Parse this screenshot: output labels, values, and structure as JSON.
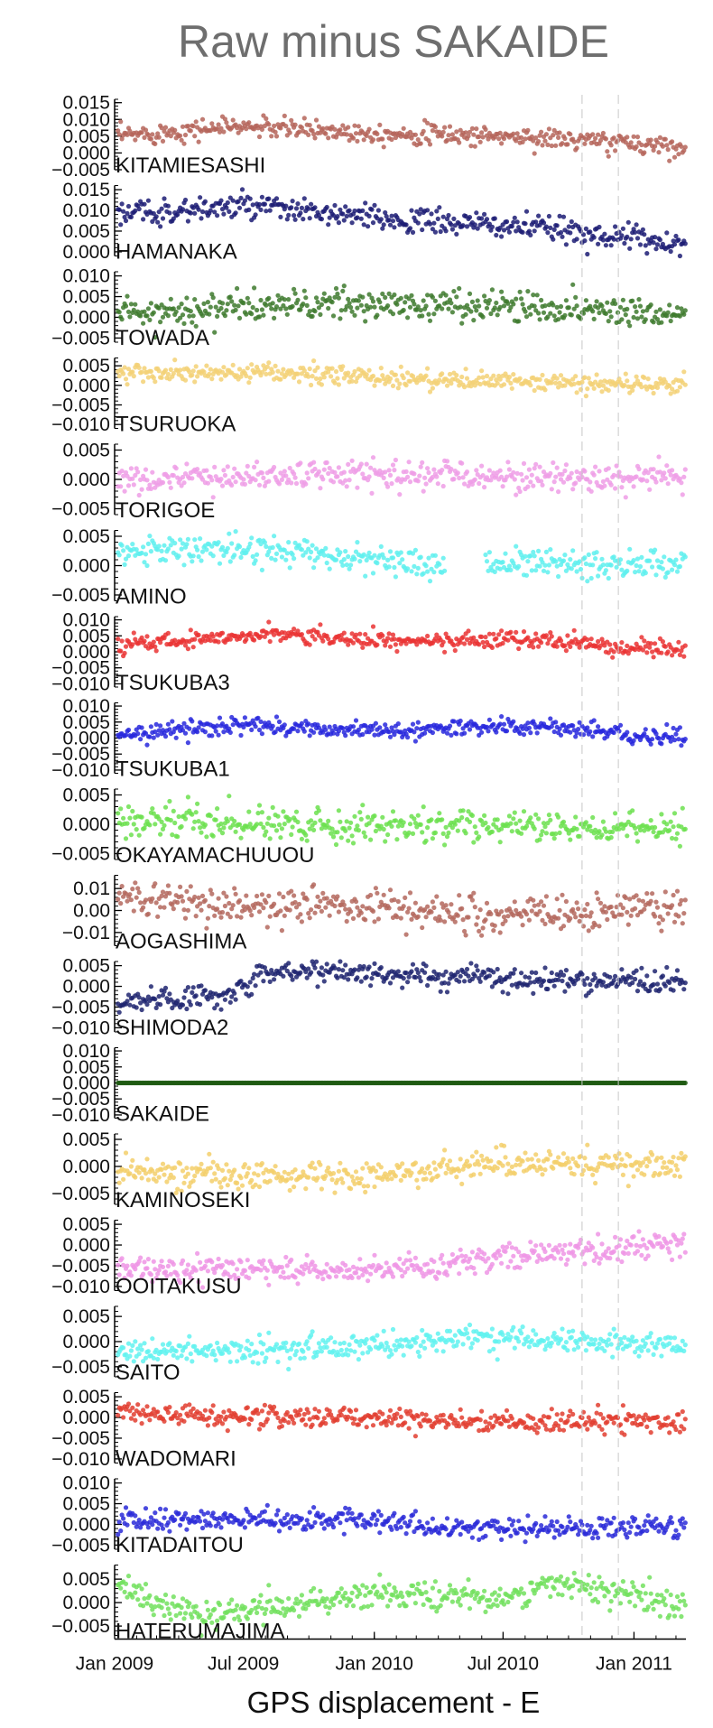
{
  "chart_data": {
    "type": "scatter",
    "title": "Raw minus SAKAIDE",
    "xlabel": "GPS displacement - E",
    "x_ticks": [
      "Jan 2009",
      "Jul 2009",
      "Jan 2010",
      "Jul 2010",
      "Jan 2011"
    ],
    "xlim": [
      "2009-01-01",
      "2011-03-15"
    ],
    "reference_lines": [
      "2010-10-20",
      "2010-12-10"
    ],
    "grid": false,
    "legend": "none",
    "panels": [
      {
        "station": "KITAMIESASHI",
        "color": "#b5655a",
        "ylim": [
          -0.005,
          0.016
        ],
        "y_ticks": [
          "0.015",
          "0.010",
          "0.005",
          "0.000",
          "−0.005"
        ],
        "y_tick_values": [
          0.015,
          0.01,
          0.005,
          0.0,
          -0.005
        ],
        "trend": [
          [
            "2009-01-01",
            0.005
          ],
          [
            "2009-06-15",
            0.008
          ],
          [
            "2010-01-01",
            0.006
          ],
          [
            "2010-07-01",
            0.005
          ],
          [
            "2011-03-15",
            0.002
          ]
        ],
        "spread": 0.0015
      },
      {
        "station": "HAMANAKA",
        "color": "#1c1c74",
        "ylim": [
          -0.001,
          0.016
        ],
        "y_ticks": [
          "0.015",
          "0.010",
          "0.005",
          "0.000"
        ],
        "y_tick_values": [
          0.015,
          0.01,
          0.005,
          0.0
        ],
        "trend": [
          [
            "2009-01-01",
            0.009
          ],
          [
            "2009-07-01",
            0.011
          ],
          [
            "2010-01-01",
            0.008
          ],
          [
            "2010-08-01",
            0.006
          ],
          [
            "2011-03-15",
            0.002
          ]
        ],
        "spread": 0.0015
      },
      {
        "station": "TOWADA",
        "color": "#3e7a2e",
        "ylim": [
          -0.006,
          0.011
        ],
        "y_ticks": [
          "0.010",
          "0.005",
          "0.000",
          "−0.005"
        ],
        "y_tick_values": [
          0.01,
          0.005,
          0.0,
          -0.005
        ],
        "trend": [
          [
            "2009-01-01",
            0.001
          ],
          [
            "2009-09-01",
            0.003
          ],
          [
            "2010-06-01",
            0.003
          ],
          [
            "2011-03-15",
            0.001
          ]
        ],
        "spread": 0.0018
      },
      {
        "station": "TSURUOKA",
        "color": "#f3d175",
        "ylim": [
          -0.011,
          0.007
        ],
        "y_ticks": [
          "0.005",
          "0.000",
          "−0.005",
          "−0.010"
        ],
        "y_tick_values": [
          0.005,
          0.0,
          -0.005,
          -0.01
        ],
        "trend": [
          [
            "2009-01-01",
            0.003
          ],
          [
            "2009-09-01",
            0.003
          ],
          [
            "2010-06-01",
            0.001
          ],
          [
            "2011-03-15",
            0.0
          ]
        ],
        "spread": 0.0012
      },
      {
        "station": "TORIGOE",
        "color": "#ee9de6",
        "ylim": [
          -0.006,
          0.006
        ],
        "y_ticks": [
          "0.005",
          "0.000",
          "−0.005"
        ],
        "y_tick_values": [
          0.005,
          0.0,
          -0.005
        ],
        "trend": [
          [
            "2009-01-01",
            0.0
          ],
          [
            "2010-01-01",
            0.001
          ],
          [
            "2011-03-15",
            0.0
          ]
        ],
        "spread": 0.0012
      },
      {
        "station": "AMINO",
        "color": "#5ff0ee",
        "ylim": [
          -0.006,
          0.006
        ],
        "y_ticks": [
          "0.005",
          "0.000",
          "−0.005"
        ],
        "y_tick_values": [
          0.005,
          0.0,
          -0.005
        ],
        "trend": [
          [
            "2009-01-01",
            0.0025
          ],
          [
            "2009-07-01",
            0.003
          ],
          [
            "2010-04-01",
            0.0
          ],
          [
            "2010-08-01",
            0.0005
          ],
          [
            "2011-03-15",
            0.0
          ]
        ],
        "spread": 0.0012,
        "gap": [
          "2010-04-10",
          "2010-06-05"
        ]
      },
      {
        "station": "TSUKUBA3",
        "color": "#ea3434",
        "ylim": [
          -0.011,
          0.011
        ],
        "y_ticks": [
          "0.010",
          "0.005",
          "0.000",
          "−0.005",
          "−0.010"
        ],
        "y_tick_values": [
          0.01,
          0.005,
          0.0,
          -0.005,
          -0.01
        ],
        "trend": [
          [
            "2009-01-01",
            0.002
          ],
          [
            "2009-08-01",
            0.006
          ],
          [
            "2010-02-01",
            0.003
          ],
          [
            "2010-08-01",
            0.004
          ],
          [
            "2011-03-15",
            0.0
          ]
        ],
        "spread": 0.0013
      },
      {
        "station": "TSUKUBA1",
        "color": "#2828dd",
        "ylim": [
          -0.011,
          0.011
        ],
        "y_ticks": [
          "0.010",
          "0.005",
          "0.000",
          "−0.005",
          "−0.010"
        ],
        "y_tick_values": [
          0.01,
          0.005,
          0.0,
          -0.005,
          -0.01
        ],
        "trend": [
          [
            "2009-01-01",
            0.001
          ],
          [
            "2009-07-01",
            0.004
          ],
          [
            "2010-01-01",
            0.002
          ],
          [
            "2010-07-01",
            0.004
          ],
          [
            "2011-03-15",
            0.0
          ]
        ],
        "spread": 0.0013
      },
      {
        "station": "OKAYAMACHUUOU",
        "color": "#6ce04f",
        "ylim": [
          -0.006,
          0.006
        ],
        "y_ticks": [
          "0.005",
          "0.000",
          "−0.005"
        ],
        "y_tick_values": [
          0.005,
          0.0,
          -0.005
        ],
        "trend": [
          [
            "2009-01-01",
            0.0005
          ],
          [
            "2011-03-15",
            -0.001
          ]
        ],
        "spread": 0.0013
      },
      {
        "station": "AOGASHIMA",
        "color": "#b4695e",
        "ylim": [
          -0.016,
          0.016
        ],
        "y_ticks": [
          "0.01",
          "0.00",
          "−0.01"
        ],
        "y_tick_values": [
          0.01,
          0.0,
          -0.01
        ],
        "trend": [
          [
            "2009-01-01",
            0.007
          ],
          [
            "2009-07-01",
            0.002
          ],
          [
            "2010-01-01",
            0.002
          ],
          [
            "2010-07-01",
            -0.003
          ],
          [
            "2011-03-15",
            0.002
          ]
        ],
        "spread": 0.004
      },
      {
        "station": "SHIMODA2",
        "color": "#1f2470",
        "ylim": [
          -0.011,
          0.006
        ],
        "y_ticks": [
          "0.005",
          "0.000",
          "−0.005",
          "−0.010"
        ],
        "y_tick_values": [
          0.005,
          0.0,
          -0.005,
          -0.01
        ],
        "trend": [
          [
            "2009-01-01",
            -0.004
          ],
          [
            "2009-06-01",
            -0.002
          ],
          [
            "2009-08-01",
            0.004
          ],
          [
            "2010-06-01",
            0.002
          ],
          [
            "2011-03-15",
            0.001
          ]
        ],
        "spread": 0.0015
      },
      {
        "station": "SAKAIDE",
        "color": "#1f5a12",
        "ylim": [
          -0.011,
          0.011
        ],
        "y_ticks": [
          "0.010",
          "0.005",
          "0.000",
          "−0.005",
          "−0.010"
        ],
        "y_tick_values": [
          0.01,
          0.005,
          0.0,
          -0.005,
          -0.01
        ],
        "trend": [
          [
            "2009-01-01",
            0.0
          ],
          [
            "2011-03-15",
            0.0
          ]
        ],
        "spread": 0.0
      },
      {
        "station": "KAMINOSEKI",
        "color": "#f3cf6b",
        "ylim": [
          -0.007,
          0.006
        ],
        "y_ticks": [
          "0.005",
          "0.000",
          "−0.005"
        ],
        "y_tick_values": [
          0.005,
          0.0,
          -0.005
        ],
        "trend": [
          [
            "2009-01-01",
            -0.001
          ],
          [
            "2009-12-01",
            -0.002
          ],
          [
            "2010-08-01",
            0.001
          ],
          [
            "2011-03-15",
            0.0
          ]
        ],
        "spread": 0.0013
      },
      {
        "station": "OOITAKUSU",
        "color": "#ee95e5",
        "ylim": [
          -0.011,
          0.006
        ],
        "y_ticks": [
          "0.005",
          "0.000",
          "−0.005",
          "−0.010"
        ],
        "y_tick_values": [
          0.005,
          0.0,
          -0.005,
          -0.01
        ],
        "trend": [
          [
            "2009-01-01",
            -0.006
          ],
          [
            "2010-01-01",
            -0.006
          ],
          [
            "2010-07-01",
            -0.003
          ],
          [
            "2011-03-15",
            0.0
          ]
        ],
        "spread": 0.0015
      },
      {
        "station": "SAITO",
        "color": "#62f2f0",
        "ylim": [
          -0.007,
          0.007
        ],
        "y_ticks": [
          "0.005",
          "0.000",
          "−0.005"
        ],
        "y_tick_values": [
          0.005,
          0.0,
          -0.005
        ],
        "trend": [
          [
            "2009-01-01",
            -0.002
          ],
          [
            "2009-07-01",
            -0.002
          ],
          [
            "2010-07-01",
            0.001
          ],
          [
            "2011-03-15",
            -0.001
          ]
        ],
        "spread": 0.0012
      },
      {
        "station": "WADOMARI",
        "color": "#e23e30",
        "ylim": [
          -0.011,
          0.006
        ],
        "y_ticks": [
          "0.005",
          "0.000",
          "−0.005",
          "−0.010"
        ],
        "y_tick_values": [
          0.005,
          0.0,
          -0.005,
          -0.01
        ],
        "trend": [
          [
            "2009-01-01",
            0.001
          ],
          [
            "2010-06-01",
            -0.001
          ],
          [
            "2011-03-15",
            -0.001
          ]
        ],
        "spread": 0.0013
      },
      {
        "station": "KITADAITOU",
        "color": "#2a2ad8",
        "ylim": [
          -0.006,
          0.011
        ],
        "y_ticks": [
          "0.010",
          "0.005",
          "0.000",
          "−0.005"
        ],
        "y_tick_values": [
          0.01,
          0.005,
          0.0,
          -0.005
        ],
        "trend": [
          [
            "2009-01-01",
            0.001
          ],
          [
            "2010-01-01",
            0.001
          ],
          [
            "2010-04-01",
            -0.001
          ],
          [
            "2011-03-15",
            -0.001
          ]
        ],
        "spread": 0.0013
      },
      {
        "station": "HATERUMAJIMA",
        "color": "#72e05e",
        "ylim": [
          -0.007,
          0.008
        ],
        "y_ticks": [
          "0.005",
          "0.000",
          "−0.005"
        ],
        "y_tick_values": [
          0.005,
          0.0,
          -0.005
        ],
        "trend": [
          [
            "2009-01-01",
            0.003
          ],
          [
            "2009-05-01",
            -0.003
          ],
          [
            "2010-01-01",
            0.002
          ],
          [
            "2010-06-01",
            0.001
          ],
          [
            "2010-10-15",
            0.004
          ],
          [
            "2011-03-15",
            -0.001
          ]
        ],
        "spread": 0.0015
      }
    ]
  }
}
